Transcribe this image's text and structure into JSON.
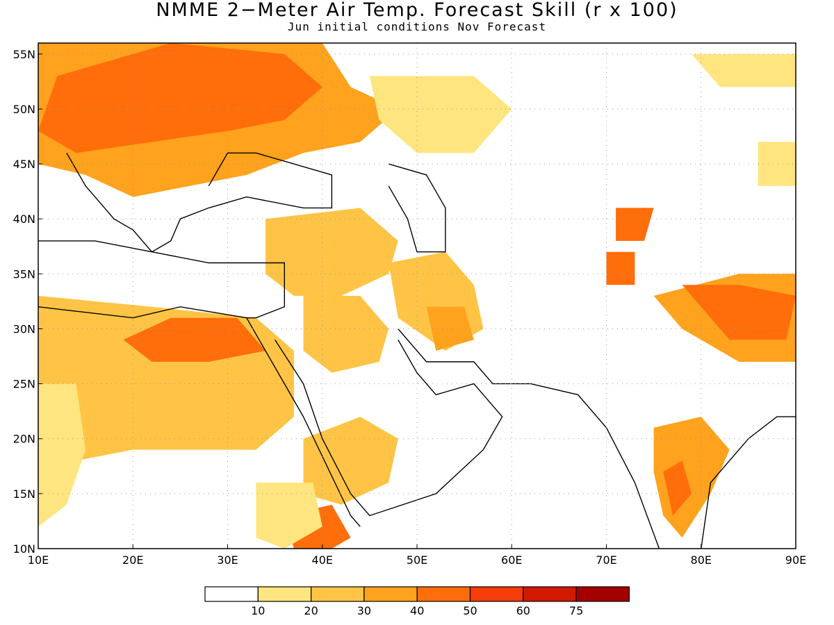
{
  "title": "NMME 2−Meter Air Temp. Forecast Skill (r x 100)",
  "subtitle": "Jun initial conditions   Nov Forecast",
  "map": {
    "lon_range": [
      10,
      90
    ],
    "lat_range": [
      10,
      56
    ],
    "lat_ticks": [
      {
        "value": 55,
        "label": "55N"
      },
      {
        "value": 50,
        "label": "50N"
      },
      {
        "value": 45,
        "label": "45N"
      },
      {
        "value": 40,
        "label": "40N"
      },
      {
        "value": 35,
        "label": "35N"
      },
      {
        "value": 30,
        "label": "30N"
      },
      {
        "value": 25,
        "label": "25N"
      },
      {
        "value": 20,
        "label": "20N"
      },
      {
        "value": 15,
        "label": "15N"
      },
      {
        "value": 10,
        "label": "10N"
      }
    ],
    "lon_ticks": [
      {
        "value": 10,
        "label": "10E"
      },
      {
        "value": 20,
        "label": "20E"
      },
      {
        "value": 30,
        "label": "30E"
      },
      {
        "value": 40,
        "label": "40E"
      },
      {
        "value": 50,
        "label": "50E"
      },
      {
        "value": 60,
        "label": "60E"
      },
      {
        "value": 70,
        "label": "70E"
      },
      {
        "value": 80,
        "label": "80E"
      },
      {
        "value": 90,
        "label": "90E"
      }
    ],
    "grid": "dotted"
  },
  "colorbar": {
    "colors": [
      "#ffffff",
      "#ffe57f",
      "#ffc446",
      "#ffa21d",
      "#ff6e0a",
      "#f53c0a",
      "#d21a00",
      "#a50000"
    ],
    "labels": [
      "10",
      "20",
      "30",
      "40",
      "50",
      "60",
      "75"
    ]
  },
  "regions": [
    {
      "level": 3,
      "color": "#ffa21d",
      "points": [
        [
          10,
          56
        ],
        [
          40,
          56
        ],
        [
          43,
          52
        ],
        [
          48,
          50
        ],
        [
          44,
          47
        ],
        [
          38,
          46
        ],
        [
          32,
          44
        ],
        [
          26,
          43
        ],
        [
          20,
          42
        ],
        [
          15,
          44
        ],
        [
          10,
          45
        ]
      ]
    },
    {
      "level": 4,
      "color": "#ff6e0a",
      "points": [
        [
          12,
          53
        ],
        [
          24,
          56
        ],
        [
          36,
          55
        ],
        [
          40,
          52
        ],
        [
          36,
          49
        ],
        [
          30,
          48
        ],
        [
          22,
          47
        ],
        [
          14,
          46
        ],
        [
          10,
          48
        ]
      ]
    },
    {
      "level": 2,
      "color": "#ffc446",
      "points": [
        [
          10,
          33
        ],
        [
          22,
          32
        ],
        [
          33,
          31
        ],
        [
          37,
          28
        ],
        [
          37,
          22
        ],
        [
          33,
          19
        ],
        [
          26,
          19
        ],
        [
          20,
          19
        ],
        [
          14,
          18
        ],
        [
          10,
          16
        ]
      ]
    },
    {
      "level": 4,
      "color": "#ff6e0a",
      "points": [
        [
          19,
          29
        ],
        [
          24,
          31
        ],
        [
          31,
          31
        ],
        [
          34,
          28
        ],
        [
          28,
          27
        ],
        [
          22,
          27
        ]
      ]
    },
    {
      "level": 1,
      "color": "#ffe57f",
      "points": [
        [
          10,
          25
        ],
        [
          14,
          25
        ],
        [
          15,
          19
        ],
        [
          13,
          14
        ],
        [
          10,
          12
        ]
      ]
    },
    {
      "level": 2,
      "color": "#ffc446",
      "points": [
        [
          34,
          40
        ],
        [
          44,
          41
        ],
        [
          48,
          38
        ],
        [
          47,
          35
        ],
        [
          42,
          33
        ],
        [
          37,
          33
        ],
        [
          34,
          35
        ]
      ]
    },
    {
      "level": 2,
      "color": "#ffc446",
      "points": [
        [
          38,
          33
        ],
        [
          44,
          33
        ],
        [
          47,
          30
        ],
        [
          46,
          27
        ],
        [
          41,
          26
        ],
        [
          38,
          28
        ]
      ]
    },
    {
      "level": 2,
      "color": "#ffc446",
      "points": [
        [
          47,
          36
        ],
        [
          53,
          37
        ],
        [
          56,
          34
        ],
        [
          57,
          30
        ],
        [
          53,
          28
        ],
        [
          48,
          31
        ]
      ]
    },
    {
      "level": 3,
      "color": "#ffa21d",
      "points": [
        [
          51,
          32
        ],
        [
          55,
          32
        ],
        [
          56,
          29
        ],
        [
          52,
          28
        ]
      ]
    },
    {
      "level": 2,
      "color": "#ffc446",
      "points": [
        [
          38,
          20
        ],
        [
          44,
          22
        ],
        [
          48,
          20
        ],
        [
          47,
          16
        ],
        [
          42,
          14
        ],
        [
          38,
          15
        ]
      ]
    },
    {
      "level": 4,
      "color": "#ff6e0a",
      "points": [
        [
          36,
          13
        ],
        [
          41,
          14
        ],
        [
          43,
          11
        ],
        [
          41,
          10
        ],
        [
          37,
          10
        ]
      ]
    },
    {
      "level": 1,
      "color": "#ffe57f",
      "points": [
        [
          33,
          16
        ],
        [
          39,
          16
        ],
        [
          40,
          12
        ],
        [
          36,
          10
        ],
        [
          33,
          11
        ]
      ]
    },
    {
      "level": 3,
      "color": "#ffa21d",
      "points": [
        [
          75,
          33
        ],
        [
          84,
          35
        ],
        [
          90,
          35
        ],
        [
          90,
          27
        ],
        [
          84,
          27
        ],
        [
          78,
          30
        ]
      ]
    },
    {
      "level": 4,
      "color": "#ff6e0a",
      "points": [
        [
          78,
          34
        ],
        [
          84,
          34
        ],
        [
          90,
          33
        ],
        [
          89,
          29
        ],
        [
          83,
          29
        ]
      ]
    },
    {
      "level": 3,
      "color": "#ffa21d",
      "points": [
        [
          75,
          21
        ],
        [
          80,
          22
        ],
        [
          83,
          19
        ],
        [
          81,
          15
        ],
        [
          78,
          11
        ],
        [
          76,
          13
        ],
        [
          75,
          17
        ]
      ]
    },
    {
      "level": 4,
      "color": "#ff6e0a",
      "points": [
        [
          76,
          17
        ],
        [
          78,
          18
        ],
        [
          79,
          15
        ],
        [
          77,
          13
        ]
      ]
    },
    {
      "level": 4,
      "color": "#ff6e0a",
      "points": [
        [
          71,
          41
        ],
        [
          75,
          41
        ],
        [
          74,
          38
        ],
        [
          71,
          38
        ]
      ]
    },
    {
      "level": 4,
      "color": "#ff6e0a",
      "points": [
        [
          70,
          37
        ],
        [
          73,
          37
        ],
        [
          73,
          34
        ],
        [
          70,
          34
        ]
      ]
    },
    {
      "level": 1,
      "color": "#ffe57f",
      "points": [
        [
          45,
          53
        ],
        [
          56,
          53
        ],
        [
          60,
          50
        ],
        [
          56,
          46
        ],
        [
          50,
          46
        ],
        [
          46,
          49
        ]
      ]
    },
    {
      "level": 1,
      "color": "#ffe57f",
      "points": [
        [
          86,
          47
        ],
        [
          90,
          47
        ],
        [
          90,
          43
        ],
        [
          86,
          43
        ]
      ]
    },
    {
      "level": 1,
      "color": "#ffe57f",
      "points": [
        [
          79,
          55
        ],
        [
          90,
          55
        ],
        [
          90,
          52
        ],
        [
          82,
          52
        ]
      ]
    }
  ],
  "coastlines": [
    {
      "points": [
        [
          10,
          38
        ],
        [
          16,
          38
        ],
        [
          22,
          37
        ],
        [
          28,
          36
        ],
        [
          36,
          36
        ],
        [
          36,
          32
        ],
        [
          33,
          31
        ],
        [
          32,
          31
        ],
        [
          25,
          32
        ],
        [
          20,
          31
        ],
        [
          10,
          32
        ]
      ]
    },
    {
      "points": [
        [
          28,
          41
        ],
        [
          32,
          42
        ],
        [
          38,
          41
        ],
        [
          41,
          41
        ],
        [
          41,
          44
        ],
        [
          37,
          45
        ],
        [
          33,
          46
        ],
        [
          30,
          46
        ],
        [
          28,
          43
        ]
      ]
    },
    {
      "points": [
        [
          47,
          45
        ],
        [
          51,
          44
        ],
        [
          53,
          41
        ],
        [
          53,
          37
        ],
        [
          50,
          37
        ],
        [
          49,
          40
        ],
        [
          47,
          43
        ]
      ]
    },
    {
      "points": [
        [
          32,
          31
        ],
        [
          34,
          28
        ],
        [
          38,
          22
        ],
        [
          43,
          13
        ],
        [
          44,
          12
        ]
      ]
    },
    {
      "points": [
        [
          35,
          29
        ],
        [
          38,
          25
        ],
        [
          40,
          20
        ],
        [
          43,
          15
        ],
        [
          45,
          13
        ],
        [
          52,
          15
        ],
        [
          57,
          19
        ],
        [
          59,
          22
        ],
        [
          56,
          25
        ],
        [
          52,
          24
        ],
        [
          50,
          26
        ],
        [
          48,
          29
        ]
      ]
    },
    {
      "points": [
        [
          48,
          30
        ],
        [
          51,
          27
        ],
        [
          56,
          27
        ],
        [
          58,
          25
        ],
        [
          62,
          25
        ],
        [
          67,
          24
        ],
        [
          70,
          21
        ],
        [
          73,
          16
        ],
        [
          76,
          9
        ]
      ]
    },
    {
      "points": [
        [
          80,
          10
        ],
        [
          81,
          16
        ],
        [
          85,
          20
        ],
        [
          88,
          22
        ],
        [
          90,
          22
        ]
      ]
    },
    {
      "points": [
        [
          13,
          46
        ],
        [
          15,
          43
        ],
        [
          18,
          40
        ],
        [
          20,
          39
        ],
        [
          22,
          37
        ],
        [
          24,
          38
        ],
        [
          25,
          40
        ],
        [
          28,
          41
        ]
      ]
    }
  ]
}
